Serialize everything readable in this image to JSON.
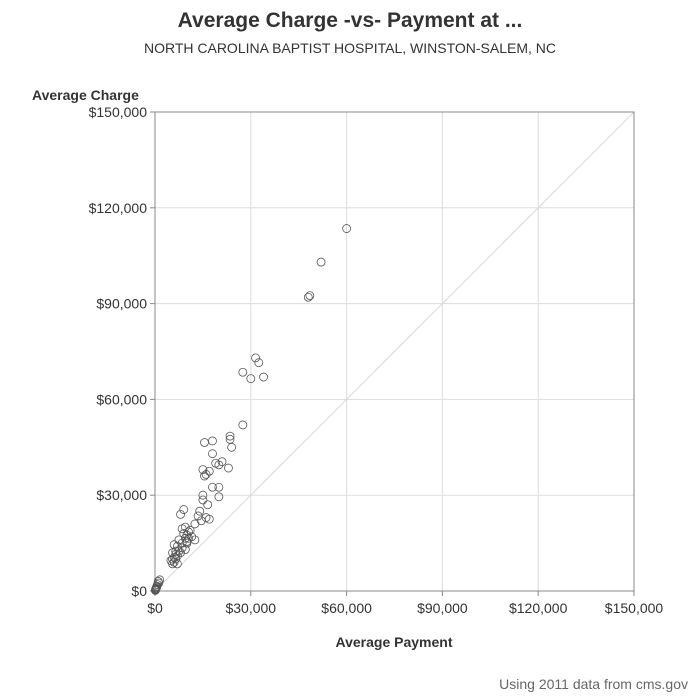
{
  "chart_data": {
    "type": "scatter",
    "title": "Average Charge -vs- Payment at ...",
    "subtitle": "NORTH CAROLINA BAPTIST HOSPITAL, WINSTON-SALEM, NC",
    "xlabel": "Average Payment",
    "ylabel": "Average Charge",
    "footnote": "Using 2011 data from cms.gov",
    "xlim": [
      0,
      150000
    ],
    "ylim": [
      0,
      150000
    ],
    "x_ticks": [
      0,
      30000,
      60000,
      90000,
      120000,
      150000
    ],
    "y_ticks": [
      0,
      30000,
      60000,
      90000,
      120000,
      150000
    ],
    "x_tick_labels": [
      "$0",
      "$30,000",
      "$60,000",
      "$90,000",
      "$120,000",
      "$150,000"
    ],
    "y_tick_labels": [
      "$0",
      "$30,000",
      "$60,000",
      "$90,000",
      "$120,000",
      "$150,000"
    ],
    "grid": true,
    "reference_line": "y=x",
    "colors": {
      "marker": "#555555",
      "grid": "#dddddd",
      "axis": "#888888",
      "reference": "#d8d8d8"
    },
    "points": [
      {
        "x": 60000,
        "y": 113500
      },
      {
        "x": 52000,
        "y": 103000
      },
      {
        "x": 48500,
        "y": 92500
      },
      {
        "x": 48000,
        "y": 92000
      },
      {
        "x": 31500,
        "y": 73000
      },
      {
        "x": 32500,
        "y": 71500
      },
      {
        "x": 27500,
        "y": 68500
      },
      {
        "x": 30000,
        "y": 66500
      },
      {
        "x": 34000,
        "y": 67000
      },
      {
        "x": 27500,
        "y": 52000
      },
      {
        "x": 23500,
        "y": 48500
      },
      {
        "x": 23500,
        "y": 47500
      },
      {
        "x": 18000,
        "y": 47000
      },
      {
        "x": 15500,
        "y": 46500
      },
      {
        "x": 24000,
        "y": 45000
      },
      {
        "x": 18000,
        "y": 43000
      },
      {
        "x": 21000,
        "y": 40500
      },
      {
        "x": 19000,
        "y": 40000
      },
      {
        "x": 20000,
        "y": 39500
      },
      {
        "x": 23000,
        "y": 38500
      },
      {
        "x": 15000,
        "y": 38000
      },
      {
        "x": 17000,
        "y": 37500
      },
      {
        "x": 16000,
        "y": 36500
      },
      {
        "x": 15500,
        "y": 36000
      },
      {
        "x": 18000,
        "y": 32500
      },
      {
        "x": 20000,
        "y": 32500
      },
      {
        "x": 15000,
        "y": 30000
      },
      {
        "x": 20000,
        "y": 29500
      },
      {
        "x": 15000,
        "y": 28500
      },
      {
        "x": 16500,
        "y": 27000
      },
      {
        "x": 9000,
        "y": 25500
      },
      {
        "x": 14000,
        "y": 25000
      },
      {
        "x": 8000,
        "y": 24000
      },
      {
        "x": 13500,
        "y": 23500
      },
      {
        "x": 16000,
        "y": 23000
      },
      {
        "x": 17000,
        "y": 22500
      },
      {
        "x": 14500,
        "y": 22000
      },
      {
        "x": 12500,
        "y": 21000
      },
      {
        "x": 9500,
        "y": 20000
      },
      {
        "x": 8500,
        "y": 19500
      },
      {
        "x": 11000,
        "y": 19000
      },
      {
        "x": 10500,
        "y": 18500
      },
      {
        "x": 9000,
        "y": 18000
      },
      {
        "x": 10000,
        "y": 17500
      },
      {
        "x": 11500,
        "y": 17000
      },
      {
        "x": 9500,
        "y": 16500
      },
      {
        "x": 10500,
        "y": 16500
      },
      {
        "x": 7500,
        "y": 16000
      },
      {
        "x": 12500,
        "y": 16000
      },
      {
        "x": 10000,
        "y": 15500
      },
      {
        "x": 8500,
        "y": 15000
      },
      {
        "x": 10000,
        "y": 15000
      },
      {
        "x": 6000,
        "y": 14500
      },
      {
        "x": 7000,
        "y": 14000
      },
      {
        "x": 8500,
        "y": 13500
      },
      {
        "x": 9500,
        "y": 13000
      },
      {
        "x": 6500,
        "y": 12500
      },
      {
        "x": 7500,
        "y": 12500
      },
      {
        "x": 8000,
        "y": 12000
      },
      {
        "x": 5500,
        "y": 12000
      },
      {
        "x": 6500,
        "y": 11500
      },
      {
        "x": 7000,
        "y": 11000
      },
      {
        "x": 6000,
        "y": 10500
      },
      {
        "x": 5500,
        "y": 10000
      },
      {
        "x": 6500,
        "y": 10000
      },
      {
        "x": 5000,
        "y": 9500
      },
      {
        "x": 6000,
        "y": 9000
      },
      {
        "x": 5500,
        "y": 8500
      },
      {
        "x": 7000,
        "y": 8500
      },
      {
        "x": 1500,
        "y": 3500
      },
      {
        "x": 1000,
        "y": 3000
      },
      {
        "x": 1200,
        "y": 2500
      },
      {
        "x": 800,
        "y": 2000
      },
      {
        "x": 600,
        "y": 1500
      },
      {
        "x": 500,
        "y": 1200
      },
      {
        "x": 400,
        "y": 900
      },
      {
        "x": 300,
        "y": 700
      },
      {
        "x": 250,
        "y": 500
      },
      {
        "x": 200,
        "y": 400
      },
      {
        "x": 150,
        "y": 300
      },
      {
        "x": 100,
        "y": 200
      }
    ]
  }
}
